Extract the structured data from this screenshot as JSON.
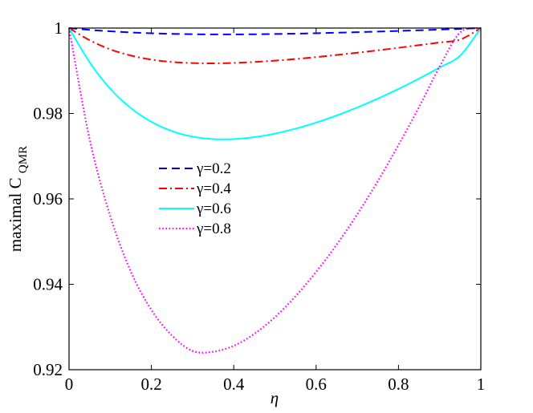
{
  "chart_data": {
    "type": "line",
    "xlabel": "η",
    "ylabel": "maximal C",
    "ylabel_sub": "QMR",
    "xlim": [
      0,
      1
    ],
    "ylim": [
      0.92,
      1
    ],
    "xticks": [
      0,
      0.2,
      0.4,
      0.6,
      0.8,
      1
    ],
    "xtick_labels": [
      "0",
      "0.2",
      "0.4",
      "0.6",
      "0.8",
      "1"
    ],
    "yticks": [
      0.92,
      0.94,
      0.96,
      0.98,
      1
    ],
    "ytick_labels": [
      "0.92",
      "0.94",
      "0.96",
      "0.98",
      "1"
    ],
    "grid": false,
    "legend_position": "center-left",
    "x": [
      0,
      0.05,
      0.1,
      0.15,
      0.2,
      0.25,
      0.3,
      0.35,
      0.4,
      0.45,
      0.5,
      0.55,
      0.6,
      0.65,
      0.7,
      0.75,
      0.8,
      0.85,
      0.9,
      0.95,
      1
    ],
    "series": [
      {
        "name": "γ=0.2",
        "color": "#0000ff",
        "style": "dashed",
        "values": [
          1.0,
          0.99958,
          0.99925,
          0.99898,
          0.99878,
          0.99864,
          0.99856,
          0.99852,
          0.99852,
          0.99855,
          0.99861,
          0.99869,
          0.99879,
          0.99891,
          0.99904,
          0.99918,
          0.99933,
          0.99948,
          0.99965,
          0.99982,
          1.0
        ]
      },
      {
        "name": "γ=0.4",
        "color": "#ff0000",
        "style": "dashdot",
        "values": [
          1.0,
          0.99716,
          0.99502,
          0.99357,
          0.99262,
          0.99206,
          0.9918,
          0.99174,
          0.99184,
          0.99206,
          0.99237,
          0.99275,
          0.9932,
          0.9937,
          0.99423,
          0.99479,
          0.99538,
          0.996,
          0.99663,
          0.99731,
          1.0
        ]
      },
      {
        "name": "γ=0.6",
        "color": "#00ffff",
        "style": "solid",
        "values": [
          1.0,
          0.99199,
          0.9858,
          0.98127,
          0.97806,
          0.97588,
          0.97457,
          0.974,
          0.974,
          0.97445,
          0.97528,
          0.97644,
          0.97786,
          0.97953,
          0.98141,
          0.98348,
          0.98574,
          0.98817,
          0.99078,
          0.99355,
          1.0
        ]
      },
      {
        "name": "γ=0.8",
        "color": "#ff00ff",
        "style": "dotted",
        "values": [
          1.0,
          0.974,
          0.956,
          0.943,
          0.934,
          0.928,
          0.9244,
          0.9242,
          0.9256,
          0.9284,
          0.9323,
          0.9372,
          0.9429,
          0.9493,
          0.9564,
          0.9642,
          0.9726,
          0.9815,
          0.991,
          0.999,
          1.0
        ]
      }
    ]
  }
}
